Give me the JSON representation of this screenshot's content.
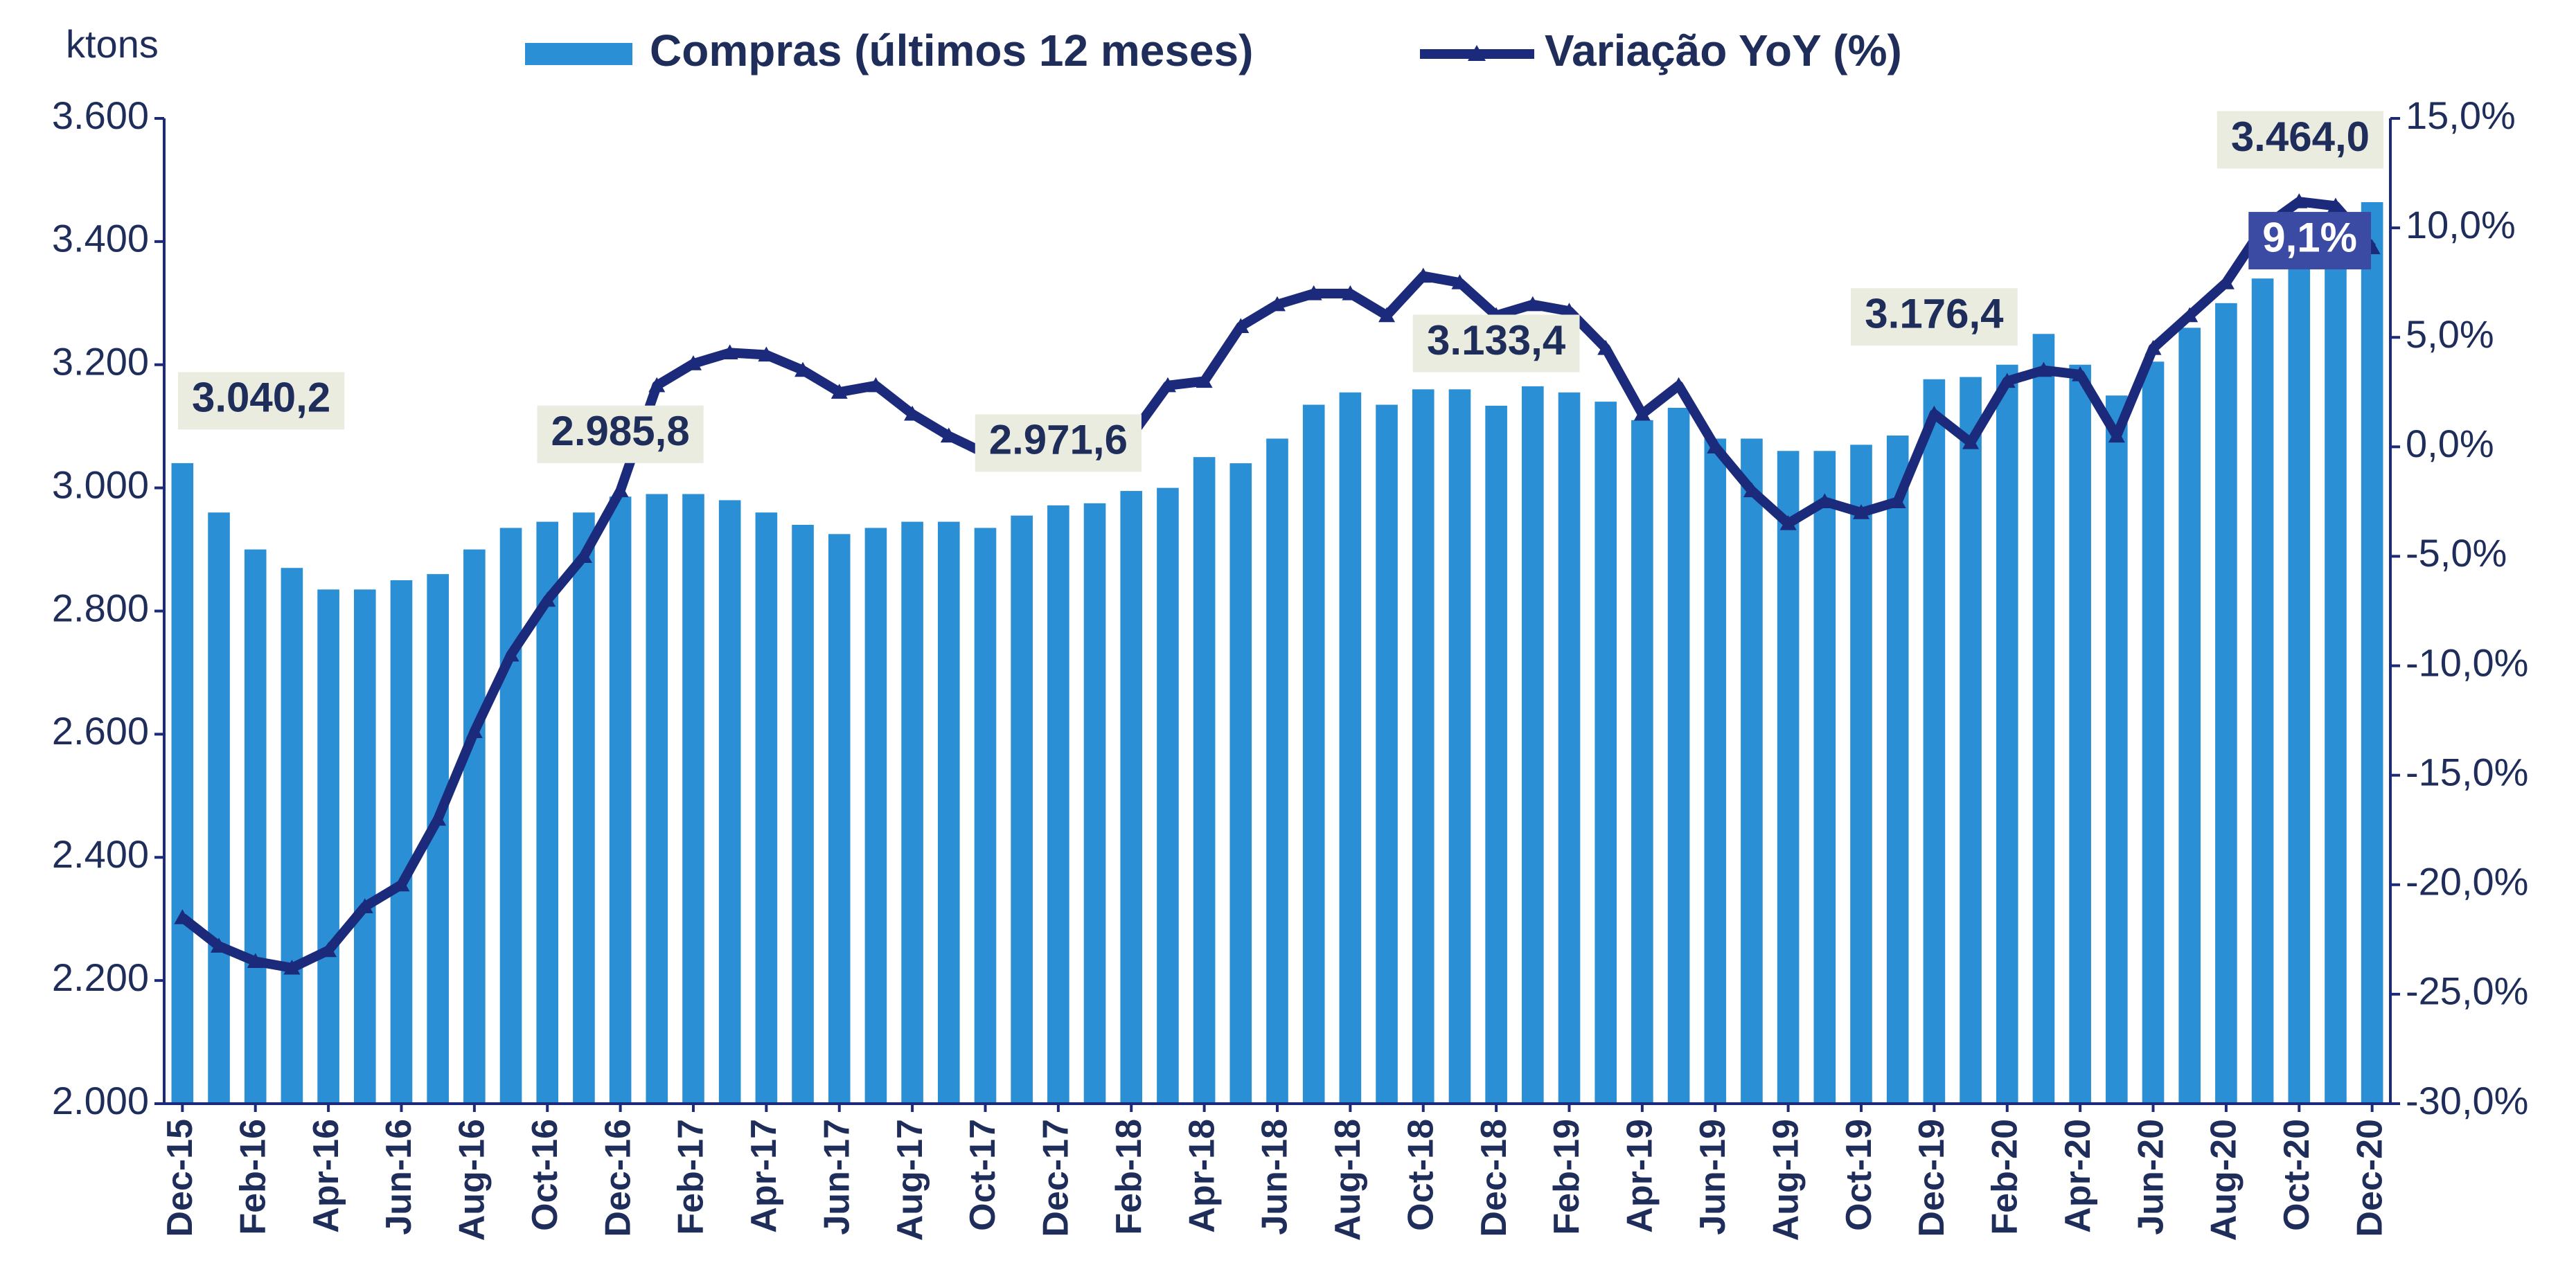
{
  "chart_data": {
    "type": "bar_line",
    "y_axis_label": "ktons",
    "categories": [
      "Dec-15",
      null,
      "Feb-16",
      null,
      "Apr-16",
      null,
      "Jun-16",
      null,
      "Aug-16",
      null,
      "Oct-16",
      null,
      "Dec-16",
      null,
      "Feb-17",
      null,
      "Apr-17",
      null,
      "Jun-17",
      null,
      "Aug-17",
      null,
      "Oct-17",
      null,
      "Dec-17",
      null,
      "Feb-18",
      null,
      "Apr-18",
      null,
      "Jun-18",
      null,
      "Aug-18",
      null,
      "Oct-18",
      null,
      "Dec-18",
      null,
      "Feb-19",
      null,
      "Apr-19",
      null,
      "Jun-19",
      null,
      "Aug-19",
      null,
      "Oct-19",
      null,
      "Dec-19",
      null,
      "Feb-20",
      null,
      "Apr-20",
      null,
      "Jun-20",
      null,
      "Aug-20",
      null,
      "Oct-20",
      null,
      "Dec-20"
    ],
    "series": [
      {
        "name": "Compras (últimos 12 meses)",
        "type": "bar",
        "color": "#2a8fd4",
        "values": [
          3040.2,
          2960,
          2900,
          2870,
          2835,
          2835,
          2850,
          2860,
          2900,
          2935,
          2945,
          2960,
          2985.8,
          2990,
          2990,
          2980,
          2960,
          2940,
          2925,
          2935,
          2945,
          2945,
          2935,
          2955,
          2971.6,
          2975,
          2995,
          3000,
          3050,
          3040,
          3080,
          3135,
          3155,
          3135,
          3160,
          3160,
          3133.4,
          3165,
          3155,
          3140,
          3110,
          3130,
          3080,
          3080,
          3060,
          3060,
          3070,
          3085,
          3176.4,
          3180,
          3200,
          3250,
          3200,
          3150,
          3205,
          3260,
          3300,
          3340,
          3400,
          3420,
          3464.0
        ],
        "value_labels": [
          "3.040,2",
          null,
          null,
          null,
          null,
          null,
          null,
          null,
          null,
          null,
          null,
          null,
          "2.985,8",
          null,
          null,
          null,
          null,
          null,
          null,
          null,
          null,
          null,
          null,
          null,
          "2.971,6",
          null,
          null,
          null,
          null,
          null,
          null,
          null,
          null,
          null,
          null,
          null,
          "3.133,4",
          null,
          null,
          null,
          null,
          null,
          null,
          null,
          null,
          null,
          null,
          null,
          "3.176,4",
          null,
          null,
          null,
          null,
          null,
          null,
          null,
          null,
          null,
          null,
          null,
          "3.464,0"
        ]
      },
      {
        "name": "Variação YoY (%)",
        "type": "line",
        "axis": "y2",
        "color": "#1b2a7a",
        "values": [
          -21.5,
          -22.8,
          -23.5,
          -23.8,
          -23,
          -21,
          -20,
          -17,
          -13,
          -9.5,
          -7,
          -5,
          -2,
          2.8,
          3.8,
          4.3,
          4.2,
          3.5,
          2.5,
          2.8,
          1.5,
          0.5,
          -0.3,
          -0.5,
          -0.5,
          0.3,
          0.5,
          2.8,
          3,
          5.5,
          6.5,
          7,
          7,
          6,
          7.8,
          7.5,
          6,
          6.5,
          6.2,
          4.5,
          1.5,
          2.8,
          0,
          -2,
          -3.5,
          -2.5,
          -3,
          -2.5,
          1.5,
          0.2,
          3,
          3.5,
          3.3,
          0.5,
          4.5,
          6,
          7.5,
          10,
          11.2,
          11,
          9.1
        ],
        "value_labels": [
          null,
          null,
          null,
          null,
          null,
          null,
          null,
          null,
          null,
          null,
          null,
          null,
          null,
          null,
          null,
          null,
          null,
          null,
          null,
          null,
          null,
          null,
          null,
          null,
          null,
          null,
          null,
          null,
          null,
          null,
          null,
          null,
          null,
          null,
          null,
          null,
          null,
          null,
          null,
          null,
          null,
          null,
          null,
          null,
          null,
          null,
          null,
          null,
          null,
          null,
          null,
          null,
          null,
          null,
          null,
          null,
          null,
          null,
          null,
          null,
          "9,1%"
        ]
      }
    ],
    "ylim": [
      2000,
      3600
    ],
    "yticks": [
      {
        "value": 2000,
        "label": "2.000"
      },
      {
        "value": 2200,
        "label": "2.200"
      },
      {
        "value": 2400,
        "label": "2.400"
      },
      {
        "value": 2600,
        "label": "2.600"
      },
      {
        "value": 2800,
        "label": "2.800"
      },
      {
        "value": 3000,
        "label": "3.000"
      },
      {
        "value": 3200,
        "label": "3.200"
      },
      {
        "value": 3400,
        "label": "3.400"
      },
      {
        "value": 3600,
        "label": "3.600"
      }
    ],
    "y2lim": [
      -30,
      15
    ],
    "y2ticks": [
      {
        "value": -30,
        "label": "-30,0%"
      },
      {
        "value": -25,
        "label": "-25,0%"
      },
      {
        "value": -20,
        "label": "-20,0%"
      },
      {
        "value": -15,
        "label": "-15,0%"
      },
      {
        "value": -10,
        "label": "-10,0%"
      },
      {
        "value": -5,
        "label": "-5,0%"
      },
      {
        "value": 0,
        "label": "0,0%"
      },
      {
        "value": 5,
        "label": "5,0%"
      },
      {
        "value": 10,
        "label": "10,0%"
      },
      {
        "value": 15,
        "label": "15,0%"
      }
    ],
    "legend": "top"
  }
}
